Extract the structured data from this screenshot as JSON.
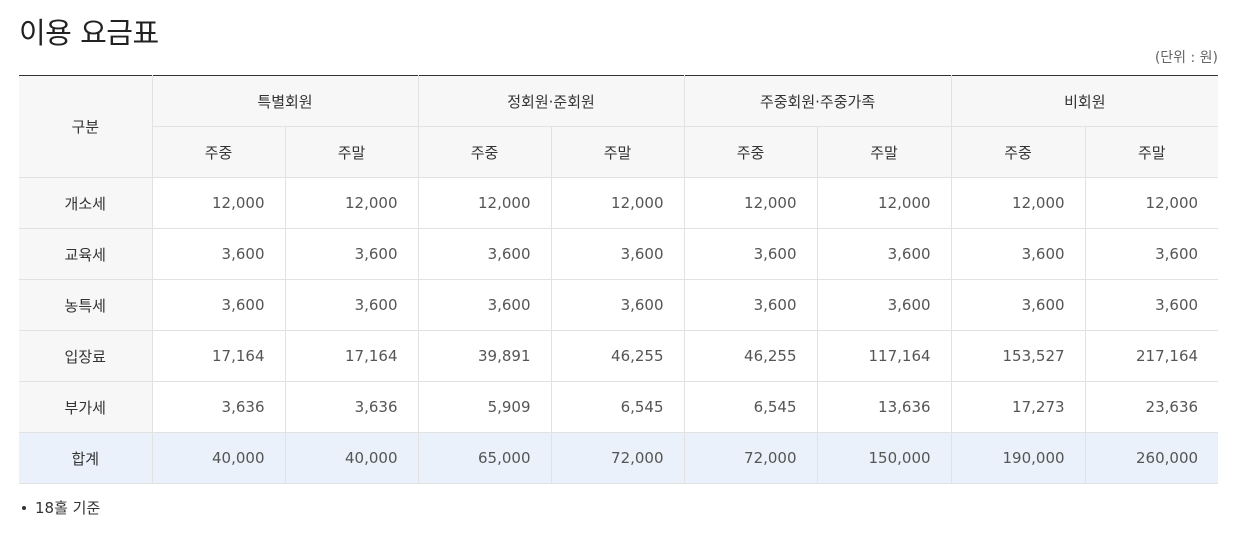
{
  "title": "이용 요금표",
  "unit_note": "(단위 : 원)",
  "table": {
    "corner_label": "구분",
    "groups": [
      "특별회원",
      "정회원·준회원",
      "주중회원·주중가족",
      "비회원"
    ],
    "subheaders": [
      "주중",
      "주말",
      "주중",
      "주말",
      "주중",
      "주말",
      "주중",
      "주말"
    ],
    "rows": [
      {
        "label": "개소세",
        "values": [
          "12,000",
          "12,000",
          "12,000",
          "12,000",
          "12,000",
          "12,000",
          "12,000",
          "12,000"
        ]
      },
      {
        "label": "교육세",
        "values": [
          "3,600",
          "3,600",
          "3,600",
          "3,600",
          "3,600",
          "3,600",
          "3,600",
          "3,600"
        ]
      },
      {
        "label": "농특세",
        "values": [
          "3,600",
          "3,600",
          "3,600",
          "3,600",
          "3,600",
          "3,600",
          "3,600",
          "3,600"
        ]
      },
      {
        "label": "입장료",
        "values": [
          "17,164",
          "17,164",
          "39,891",
          "46,255",
          "46,255",
          "117,164",
          "153,527",
          "217,164"
        ]
      },
      {
        "label": "부가세",
        "values": [
          "3,636",
          "3,636",
          "5,909",
          "6,545",
          "6,545",
          "13,636",
          "17,273",
          "23,636"
        ]
      },
      {
        "label": "합계",
        "values": [
          "40,000",
          "40,000",
          "65,000",
          "72,000",
          "72,000",
          "150,000",
          "190,000",
          "260,000"
        ]
      }
    ]
  },
  "footnote": "18홀 기준",
  "colors": {
    "header_bg": "#f7f7f8",
    "total_row_bg": "#eaf1fb",
    "top_border": "#333333",
    "grid_line": "#e2e2e2"
  }
}
